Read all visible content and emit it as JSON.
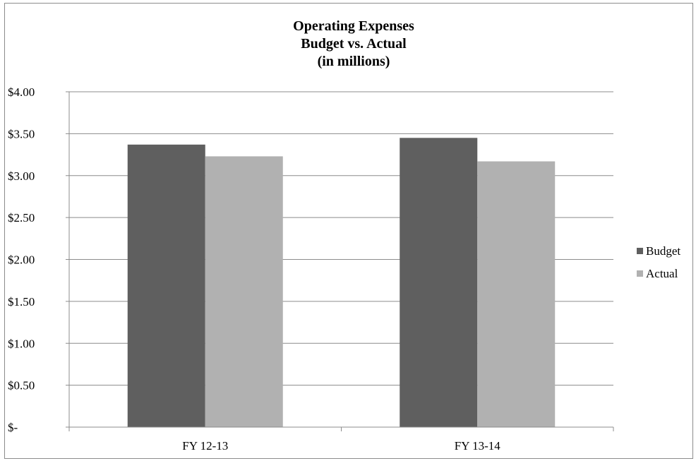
{
  "chart_data": {
    "type": "bar",
    "title_lines": [
      "Operating Expenses",
      "Budget vs. Actual",
      "(in millions)"
    ],
    "categories": [
      "FY 12-13",
      "FY 13-14"
    ],
    "series": [
      {
        "name": "Budget",
        "values": [
          3.37,
          3.45
        ],
        "color": "#5f5f5f"
      },
      {
        "name": "Actual",
        "values": [
          3.23,
          3.17
        ],
        "color": "#b1b1b1"
      }
    ],
    "y_ticks": [
      {
        "value": 0,
        "label": "$-"
      },
      {
        "value": 0.5,
        "label": "$0.50"
      },
      {
        "value": 1,
        "label": "$1.00"
      },
      {
        "value": 1.5,
        "label": "$1.50"
      },
      {
        "value": 2,
        "label": "$2.00"
      },
      {
        "value": 2.5,
        "label": "$2.50"
      },
      {
        "value": 3,
        "label": "$3.00"
      },
      {
        "value": 3.5,
        "label": "$3.50"
      },
      {
        "value": 4,
        "label": "$4.00"
      }
    ],
    "ylim": [
      0,
      4
    ],
    "grid": true,
    "legend_position": "right"
  }
}
